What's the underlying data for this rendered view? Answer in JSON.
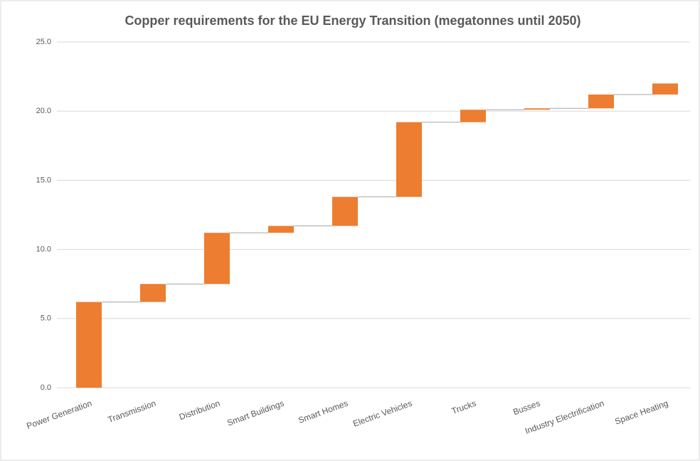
{
  "chart_data": {
    "type": "waterfall",
    "title": "Copper requirements for the EU Energy Transition (megatonnes until 2050)",
    "categories": [
      "Power Generation",
      "Transmission",
      "Distribution",
      "Smart Buildings",
      "Smart Homes",
      "Electric Vehicles",
      "Trucks",
      "Busses",
      "Industry Electrification",
      "Space Heating"
    ],
    "values": [
      6.2,
      1.3,
      3.7,
      0.5,
      2.1,
      5.4,
      0.9,
      0.1,
      1.0,
      0.8
    ],
    "color": "#ed7d31",
    "connector_color": "#a6a6a6",
    "ylim": [
      0,
      25
    ],
    "yticks": [
      {
        "value": 0,
        "label": "0.0"
      },
      {
        "value": 5,
        "label": "5.0"
      },
      {
        "value": 10,
        "label": "10.0"
      },
      {
        "value": 15,
        "label": "15.0"
      },
      {
        "value": 20,
        "label": "20.0"
      },
      {
        "value": 25,
        "label": "25.0"
      }
    ],
    "grid": true
  }
}
